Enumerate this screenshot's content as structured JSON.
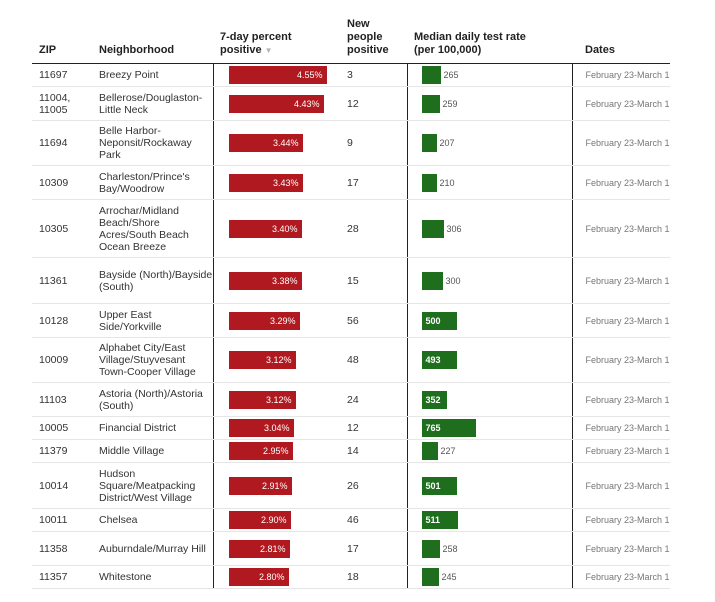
{
  "headers": {
    "zip": "ZIP",
    "neighborhood": "Neighborhood",
    "percent": "7-day percent positive",
    "sort_arrow": "▼",
    "new_positive": "New people positive",
    "test_rate": "Median daily test rate (per 100,000)",
    "dates": "Dates"
  },
  "colors": {
    "percent_bar": "#b0191f",
    "test_rate_bar": "#1e6e1e"
  },
  "chart_data": {
    "type": "table",
    "columns": [
      "ZIP",
      "Neighborhood",
      "7-day percent positive",
      "New people positive",
      "Median daily test rate (per 100,000)",
      "Dates"
    ],
    "percent_max": 4.55,
    "test_rate_max": 765,
    "rows": [
      {
        "zip": "11697",
        "neighborhood": "Breezy Point",
        "percent": 4.55,
        "percent_label": "4.55%",
        "new_positive": "3",
        "test_rate": 265,
        "test_rate_label": "265",
        "dates": "February 23-March 1"
      },
      {
        "zip": "11004, 11005",
        "neighborhood": "Bellerose/Douglaston-Little Neck",
        "percent": 4.43,
        "percent_label": "4.43%",
        "new_positive": "12",
        "test_rate": 259,
        "test_rate_label": "259",
        "dates": "February 23-March 1"
      },
      {
        "zip": "11694",
        "neighborhood": "Belle Harbor-Neponsit/Rockaway Park",
        "percent": 3.44,
        "percent_label": "3.44%",
        "new_positive": "9",
        "test_rate": 207,
        "test_rate_label": "207",
        "dates": "February 23-March 1"
      },
      {
        "zip": "10309",
        "neighborhood": "Charleston/Prince's Bay/Woodrow",
        "percent": 3.43,
        "percent_label": "3.43%",
        "new_positive": "17",
        "test_rate": 210,
        "test_rate_label": "210",
        "dates": "February 23-March 1"
      },
      {
        "zip": "10305",
        "neighborhood": "Arrochar/Midland Beach/Shore Acres/South Beach Ocean Breeze",
        "percent": 3.4,
        "percent_label": "3.40%",
        "new_positive": "28",
        "test_rate": 306,
        "test_rate_label": "306",
        "dates": "February 23-March 1"
      },
      {
        "zip": "11361",
        "neighborhood": "Bayside (North)/Bayside (South)",
        "percent": 3.38,
        "percent_label": "3.38%",
        "new_positive": "15",
        "test_rate": 300,
        "test_rate_label": "300",
        "dates": "February 23-March 1"
      },
      {
        "zip": "10128",
        "neighborhood": "Upper East Side/Yorkville",
        "percent": 3.29,
        "percent_label": "3.29%",
        "new_positive": "56",
        "test_rate": 500,
        "test_rate_label": "500",
        "dates": "February 23-March 1"
      },
      {
        "zip": "10009",
        "neighborhood": "Alphabet City/East Village/Stuyvesant Town-Cooper Village",
        "percent": 3.12,
        "percent_label": "3.12%",
        "new_positive": "48",
        "test_rate": 493,
        "test_rate_label": "493",
        "dates": "February 23-March 1"
      },
      {
        "zip": "11103",
        "neighborhood": "Astoria (North)/Astoria (South)",
        "percent": 3.12,
        "percent_label": "3.12%",
        "new_positive": "24",
        "test_rate": 352,
        "test_rate_label": "352",
        "dates": "February 23-March 1"
      },
      {
        "zip": "10005",
        "neighborhood": "Financial District",
        "percent": 3.04,
        "percent_label": "3.04%",
        "new_positive": "12",
        "test_rate": 765,
        "test_rate_label": "765",
        "dates": "February 23-March 1"
      },
      {
        "zip": "11379",
        "neighborhood": "Middle Village",
        "percent": 2.95,
        "percent_label": "2.95%",
        "new_positive": "14",
        "test_rate": 227,
        "test_rate_label": "227",
        "dates": "February 23-March 1"
      },
      {
        "zip": "10014",
        "neighborhood": "Hudson Square/Meatpacking District/West Village",
        "percent": 2.91,
        "percent_label": "2.91%",
        "new_positive": "26",
        "test_rate": 501,
        "test_rate_label": "501",
        "dates": "February 23-March 1"
      },
      {
        "zip": "10011",
        "neighborhood": "Chelsea",
        "percent": 2.9,
        "percent_label": "2.90%",
        "new_positive": "46",
        "test_rate": 511,
        "test_rate_label": "511",
        "dates": "February 23-March 1"
      },
      {
        "zip": "11358",
        "neighborhood": "Auburndale/Murray Hill",
        "percent": 2.81,
        "percent_label": "2.81%",
        "new_positive": "17",
        "test_rate": 258,
        "test_rate_label": "258",
        "dates": "February 23-March 1"
      },
      {
        "zip": "11357",
        "neighborhood": "Whitestone",
        "percent": 2.8,
        "percent_label": "2.80%",
        "new_positive": "18",
        "test_rate": 245,
        "test_rate_label": "245",
        "dates": "February 23-March 1"
      }
    ]
  }
}
